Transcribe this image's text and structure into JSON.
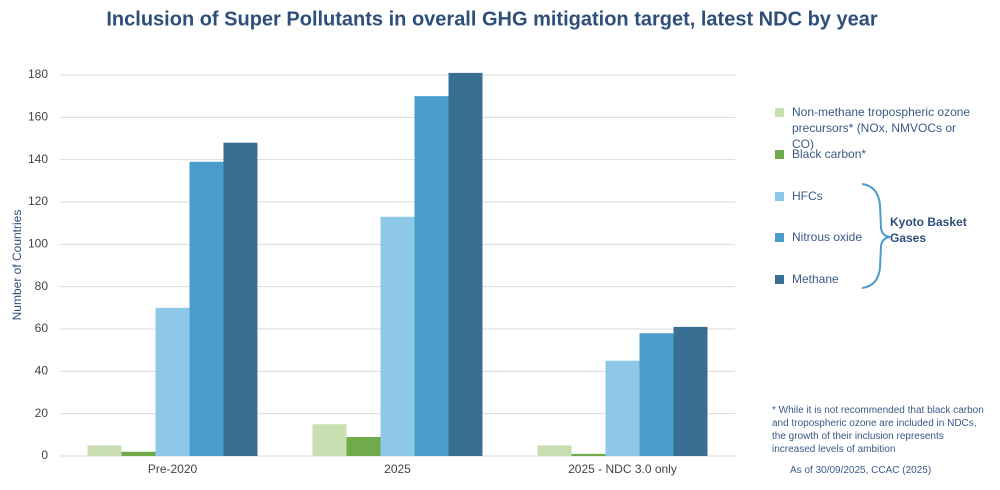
{
  "chart_data": {
    "type": "bar",
    "title": "Inclusion of Super Pollutants in overall GHG mitigation target, latest NDC by year",
    "y_label": "Number of Countries",
    "categories": [
      "Pre-2020",
      "2025",
      "2025 - NDC 3.0 only"
    ],
    "series": [
      {
        "name": "Non-methane tropospheric ozone precursors* (NOx, NMVOCs or CO)",
        "color": "#c9dfb2",
        "values": [
          5,
          15,
          5
        ]
      },
      {
        "name": "Black carbon*",
        "color": "#6fab4a",
        "values": [
          2,
          9,
          1
        ]
      },
      {
        "name": "HFCs",
        "color": "#8dc8e8",
        "values": [
          70,
          113,
          45
        ]
      },
      {
        "name": "Nitrous oxide",
        "color": "#4a9dca",
        "values": [
          139,
          170,
          58
        ]
      },
      {
        "name": "Methane",
        "color": "#386f92",
        "values": [
          148,
          181,
          61
        ]
      }
    ],
    "ylim": [
      0,
      180
    ],
    "yticks": [
      0,
      20,
      40,
      60,
      80,
      100,
      120,
      140,
      160,
      180
    ],
    "grid": true,
    "group_label": "Kyoto Basket Gases",
    "footnote": "* While it is not recommended that black carbon and tropospheric ozone are included in NDCs, the growth of their inclusion represents increased levels of ambition",
    "source": "As of 30/09/2025, CCAC (2025)"
  }
}
